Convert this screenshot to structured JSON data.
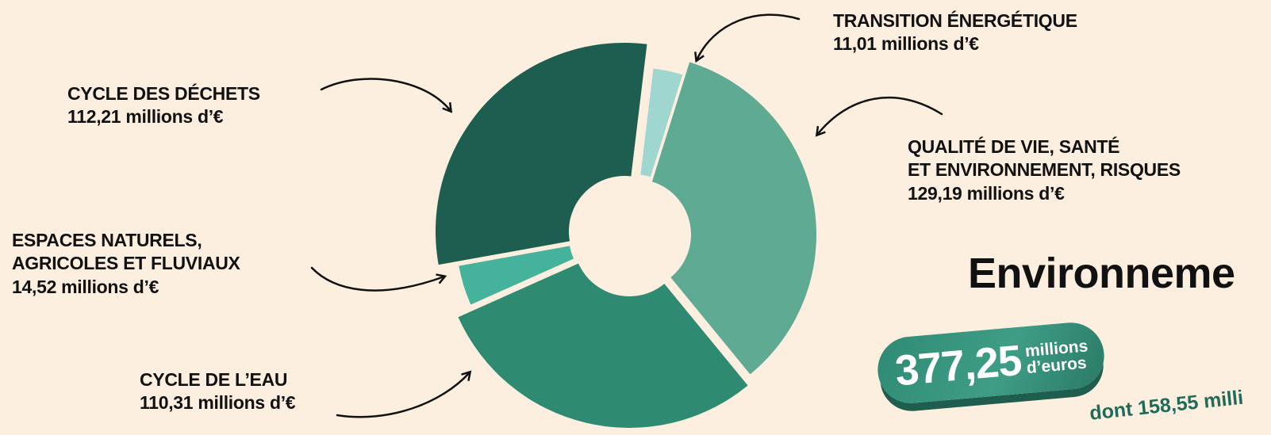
{
  "chart_data": {
    "type": "pie",
    "variant": "donut",
    "slices": [
      {
        "label": "TRANSITION ÉNERGÉTIQUE",
        "value": 11.01,
        "value_text": "11,01 millions d’€",
        "color": "#9fd6d0"
      },
      {
        "label_lines": [
          "QUALITÉ DE VIE, SANTÉ",
          "ET ENVIRONNEMENT, RISQUES"
        ],
        "value": 129.19,
        "value_text": "129,19 millions d’€",
        "color": "#5faa92"
      },
      {
        "label": "CYCLE DE L’EAU",
        "value": 110.31,
        "value_text": "110,31  millions d’€",
        "color": "#2f8a72"
      },
      {
        "label_lines": [
          "ESPACES NATURELS,",
          "AGRICOLES ET FLUVIAUX"
        ],
        "value": 14.52,
        "value_text": "14,52 millions d’€",
        "color": "#45b29b"
      },
      {
        "label": "CYCLE DES DÉCHETS",
        "value": 112.21,
        "value_text": "112,21 millions d’€",
        "color": "#1e5e50"
      }
    ]
  },
  "title": "Environneme",
  "total": {
    "amount": "377,25",
    "unit_line1": "millions",
    "unit_line2": "d’euros"
  },
  "subnote": "dont 158,55 milli"
}
